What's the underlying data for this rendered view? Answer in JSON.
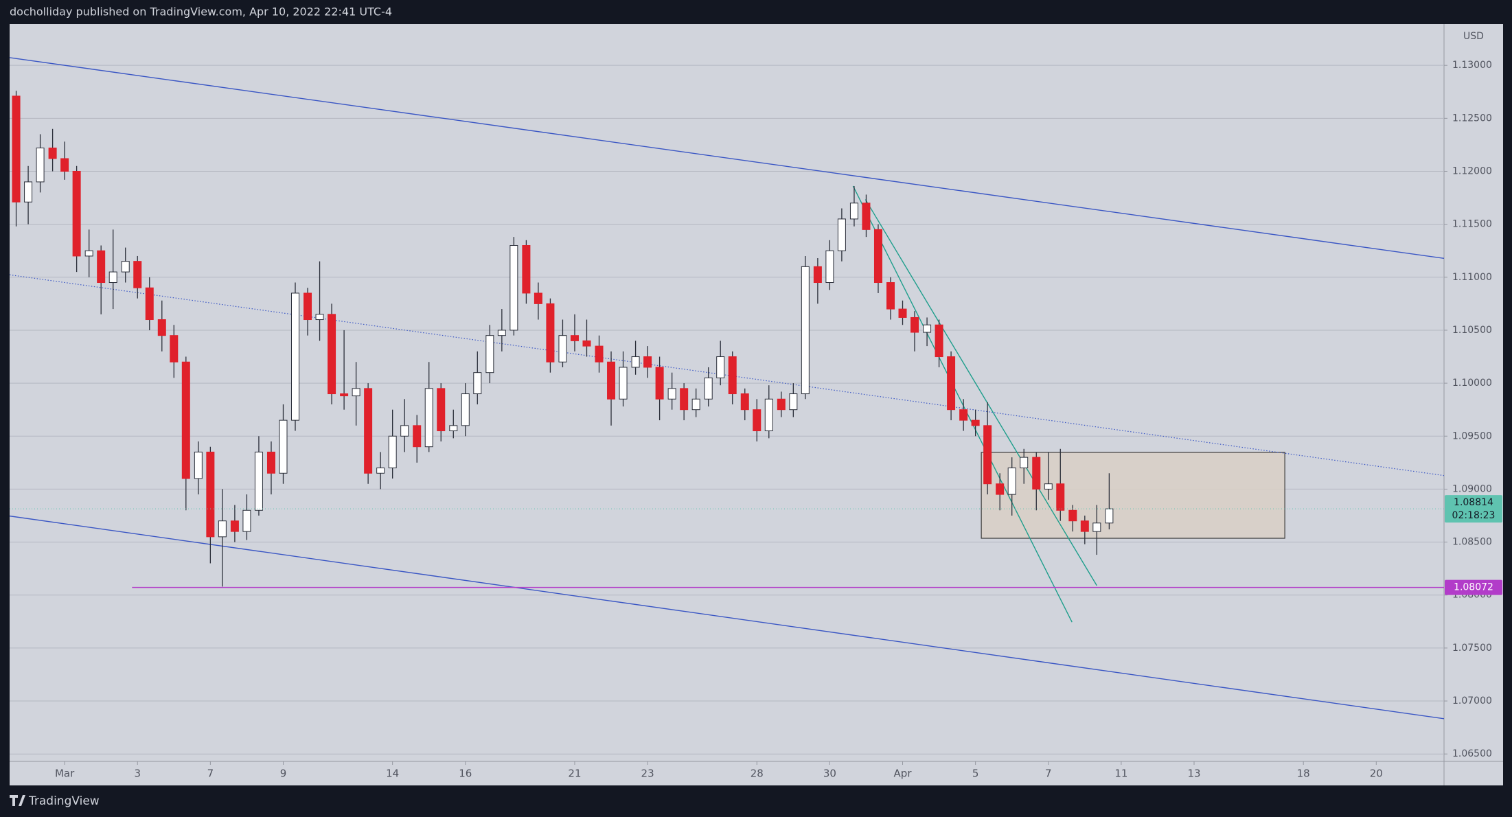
{
  "chart_data": {
    "type": "candlestick",
    "title": "docholliday published on TradingView.com, Apr 10, 2022 22:41 UTC-4",
    "brand": "TradingView",
    "currency": "USD",
    "up_color": "#ffffff",
    "down_color": "#e0212b",
    "grid": true,
    "xlim": [
      -1.51,
      37.86
    ],
    "ylim": [
      1.0643,
      1.1339
    ],
    "xticks": [
      {
        "value": 0,
        "label": "Mar"
      },
      {
        "value": 2,
        "label": "3"
      },
      {
        "value": 4,
        "label": "7"
      },
      {
        "value": 6,
        "label": "9"
      },
      {
        "value": 9,
        "label": "14"
      },
      {
        "value": 11,
        "label": "16"
      },
      {
        "value": 14,
        "label": "21"
      },
      {
        "value": 16,
        "label": "23"
      },
      {
        "value": 19,
        "label": "28"
      },
      {
        "value": 21,
        "label": "30"
      },
      {
        "value": 23,
        "label": "Apr"
      },
      {
        "value": 25,
        "label": "5"
      },
      {
        "value": 27,
        "label": "7"
      },
      {
        "value": 29,
        "label": "11"
      },
      {
        "value": 31,
        "label": "13"
      },
      {
        "value": 34,
        "label": "18"
      },
      {
        "value": 36,
        "label": "20"
      }
    ],
    "yticks": [
      {
        "value": 1.065,
        "label": "1.06500"
      },
      {
        "value": 1.07,
        "label": "1.07000"
      },
      {
        "value": 1.075,
        "label": "1.07500"
      },
      {
        "value": 1.08,
        "label": "1.08000"
      },
      {
        "value": 1.085,
        "label": "1.08500"
      },
      {
        "value": 1.09,
        "label": "1.09000"
      },
      {
        "value": 1.095,
        "label": "1.09500"
      },
      {
        "value": 1.1,
        "label": "1.10000"
      },
      {
        "value": 1.105,
        "label": "1.10500"
      },
      {
        "value": 1.11,
        "label": "1.11000"
      },
      {
        "value": 1.115,
        "label": "1.11500"
      },
      {
        "value": 1.12,
        "label": "1.12000"
      },
      {
        "value": 1.125,
        "label": "1.12500"
      },
      {
        "value": 1.13,
        "label": "1.13000"
      }
    ],
    "ohlc": [
      [
        -1.33,
        1.1271,
        1.1276,
        1.1148,
        1.1171
      ],
      [
        -1.0,
        1.1171,
        1.1205,
        1.115,
        1.119
      ],
      [
        -0.67,
        1.119,
        1.1235,
        1.118,
        1.1222
      ],
      [
        -0.33,
        1.1222,
        1.124,
        1.12,
        1.1212
      ],
      [
        0,
        1.1212,
        1.1228,
        1.1192,
        1.12
      ],
      [
        0.33,
        1.12,
        1.1205,
        1.1105,
        1.112
      ],
      [
        0.67,
        1.112,
        1.1145,
        1.11,
        1.1125
      ],
      [
        1.0,
        1.1125,
        1.113,
        1.1065,
        1.1095
      ],
      [
        1.33,
        1.1095,
        1.1145,
        1.107,
        1.1105
      ],
      [
        1.67,
        1.1105,
        1.1128,
        1.1095,
        1.1115
      ],
      [
        2.0,
        1.1115,
        1.112,
        1.108,
        1.109
      ],
      [
        2.33,
        1.109,
        1.11,
        1.105,
        1.106
      ],
      [
        2.67,
        1.106,
        1.1078,
        1.103,
        1.1045
      ],
      [
        3.0,
        1.1045,
        1.1055,
        1.1005,
        1.102
      ],
      [
        3.33,
        1.102,
        1.1025,
        1.088,
        1.091
      ],
      [
        3.67,
        1.091,
        1.0945,
        1.0895,
        1.0935
      ],
      [
        4.0,
        1.0935,
        1.094,
        1.083,
        1.0855
      ],
      [
        4.33,
        1.0855,
        1.09,
        1.0808,
        1.087
      ],
      [
        4.67,
        1.087,
        1.0885,
        1.085,
        1.086
      ],
      [
        5.0,
        1.086,
        1.0895,
        1.0852,
        1.088
      ],
      [
        5.33,
        1.088,
        1.095,
        1.0875,
        1.0935
      ],
      [
        5.67,
        1.0935,
        1.0945,
        1.0895,
        1.0915
      ],
      [
        6.0,
        1.0915,
        1.098,
        1.0905,
        1.0965
      ],
      [
        6.33,
        1.0965,
        1.1095,
        1.0955,
        1.1085
      ],
      [
        6.67,
        1.1085,
        1.109,
        1.1045,
        1.106
      ],
      [
        7.0,
        1.106,
        1.1115,
        1.104,
        1.1065
      ],
      [
        7.33,
        1.1065,
        1.1075,
        1.098,
        1.099
      ],
      [
        7.67,
        1.099,
        1.105,
        1.0975,
        1.0988
      ],
      [
        8.0,
        1.0988,
        1.102,
        1.096,
        1.0995
      ],
      [
        8.33,
        1.0995,
        1.1,
        1.0905,
        1.0915
      ],
      [
        8.67,
        1.0915,
        1.0935,
        1.09,
        1.092
      ],
      [
        9.0,
        1.092,
        1.0975,
        1.091,
        1.095
      ],
      [
        9.33,
        1.095,
        1.0985,
        1.0935,
        1.096
      ],
      [
        9.67,
        1.096,
        1.097,
        1.0925,
        1.094
      ],
      [
        10.0,
        1.094,
        1.102,
        1.0935,
        1.0995
      ],
      [
        10.33,
        1.0995,
        1.1,
        1.0945,
        1.0955
      ],
      [
        10.67,
        1.0955,
        1.0975,
        1.0948,
        1.096
      ],
      [
        11.0,
        1.096,
        1.1,
        1.095,
        1.099
      ],
      [
        11.33,
        1.099,
        1.103,
        1.098,
        1.101
      ],
      [
        11.67,
        1.101,
        1.1055,
        1.1,
        1.1045
      ],
      [
        12.0,
        1.1045,
        1.107,
        1.103,
        1.105
      ],
      [
        12.33,
        1.105,
        1.1138,
        1.1045,
        1.113
      ],
      [
        12.67,
        1.113,
        1.1135,
        1.1075,
        1.1085
      ],
      [
        13.0,
        1.1085,
        1.1095,
        1.106,
        1.1075
      ],
      [
        13.33,
        1.1075,
        1.108,
        1.101,
        1.102
      ],
      [
        13.67,
        1.102,
        1.106,
        1.1015,
        1.1045
      ],
      [
        14.0,
        1.1045,
        1.1065,
        1.103,
        1.104
      ],
      [
        14.33,
        1.104,
        1.106,
        1.1025,
        1.1035
      ],
      [
        14.67,
        1.1035,
        1.1045,
        1.101,
        1.102
      ],
      [
        15.0,
        1.102,
        1.103,
        1.096,
        1.0985
      ],
      [
        15.33,
        1.0985,
        1.103,
        1.0978,
        1.1015
      ],
      [
        15.67,
        1.1015,
        1.104,
        1.1008,
        1.1025
      ],
      [
        16.0,
        1.1025,
        1.1035,
        1.1005,
        1.1015
      ],
      [
        16.33,
        1.1015,
        1.1025,
        1.0965,
        1.0985
      ],
      [
        16.67,
        1.0985,
        1.101,
        1.0975,
        1.0995
      ],
      [
        17.0,
        1.0995,
        1.1,
        1.0965,
        1.0975
      ],
      [
        17.33,
        1.0975,
        1.0995,
        1.0968,
        1.0985
      ],
      [
        17.67,
        1.0985,
        1.1015,
        1.0978,
        1.1005
      ],
      [
        18.0,
        1.1005,
        1.104,
        1.0998,
        1.1025
      ],
      [
        18.33,
        1.1025,
        1.103,
        1.098,
        1.099
      ],
      [
        18.67,
        1.099,
        1.0995,
        1.0965,
        1.0975
      ],
      [
        19.0,
        1.0975,
        1.0985,
        1.0945,
        1.0955
      ],
      [
        19.33,
        1.0955,
        1.0998,
        1.0948,
        1.0985
      ],
      [
        19.67,
        1.0985,
        1.0992,
        1.0968,
        1.0975
      ],
      [
        20.0,
        1.0975,
        1.1,
        1.0968,
        1.099
      ],
      [
        20.33,
        1.099,
        1.112,
        1.0985,
        1.111
      ],
      [
        20.67,
        1.111,
        1.1118,
        1.1075,
        1.1095
      ],
      [
        21.0,
        1.1095,
        1.1135,
        1.1088,
        1.1125
      ],
      [
        21.33,
        1.1125,
        1.1165,
        1.1115,
        1.1155
      ],
      [
        21.67,
        1.1155,
        1.1186,
        1.1148,
        1.117
      ],
      [
        22.0,
        1.117,
        1.1178,
        1.1138,
        1.1145
      ],
      [
        22.33,
        1.1145,
        1.115,
        1.1085,
        1.1095
      ],
      [
        22.67,
        1.1095,
        1.11,
        1.106,
        1.107
      ],
      [
        23.0,
        1.107,
        1.1078,
        1.1055,
        1.1062
      ],
      [
        23.33,
        1.1062,
        1.1068,
        1.103,
        1.1048
      ],
      [
        23.67,
        1.1048,
        1.1062,
        1.1035,
        1.1055
      ],
      [
        24.0,
        1.1055,
        1.106,
        1.1015,
        1.1025
      ],
      [
        24.33,
        1.1025,
        1.103,
        1.0965,
        1.0975
      ],
      [
        24.67,
        1.0975,
        1.0985,
        1.0955,
        1.0965
      ],
      [
        25.0,
        1.0965,
        1.0975,
        1.095,
        1.096
      ],
      [
        25.33,
        1.096,
        1.0982,
        1.0895,
        1.0905
      ],
      [
        25.67,
        1.0905,
        1.0915,
        1.088,
        1.0895
      ],
      [
        26.0,
        1.0895,
        1.093,
        1.0875,
        1.092
      ],
      [
        26.33,
        1.092,
        1.0938,
        1.0905,
        1.093
      ],
      [
        26.67,
        1.093,
        1.0935,
        1.088,
        1.09
      ],
      [
        27.0,
        1.09,
        1.0935,
        1.089,
        1.0905
      ],
      [
        27.33,
        1.0905,
        1.0938,
        1.087,
        1.088
      ],
      [
        27.67,
        1.088,
        1.0885,
        1.086,
        1.087
      ],
      [
        28.0,
        1.087,
        1.0875,
        1.0848,
        1.086
      ],
      [
        28.33,
        1.086,
        1.0885,
        1.0838,
        1.0868
      ],
      [
        28.67,
        1.0868,
        1.0915,
        1.0862,
        1.08814
      ]
    ],
    "last_price": 1.08814,
    "countdown": "02:18:23",
    "last_price_color": "#5fc3b0",
    "hline": {
      "value": 1.08072,
      "x0": 1.85,
      "color": "#b23cc9"
    },
    "zone": {
      "x": [
        25.16,
        33.49
      ],
      "y": [
        1.08536,
        1.09347
      ],
      "color": "#d9cfc6"
    },
    "trendlines": [
      {
        "points": [
          [
            -1.51,
            1.13073
          ],
          [
            37.86,
            1.11178
          ]
        ],
        "color": "#3a56c4",
        "style": "solid"
      },
      {
        "points": [
          [
            -1.51,
            1.11023
          ],
          [
            37.86,
            1.09128
          ]
        ],
        "color": "#3a56c4",
        "style": "dotted"
      },
      {
        "points": [
          [
            -1.51,
            1.08746
          ],
          [
            37.86,
            1.06833
          ]
        ],
        "color": "#3a56c4",
        "style": "solid"
      },
      {
        "points": [
          [
            21.64,
            1.11861
          ],
          [
            27.65,
            1.07744
          ]
        ],
        "color": "#1e9e8c",
        "style": "solid"
      },
      {
        "points": [
          [
            21.98,
            1.11734
          ],
          [
            28.33,
            1.0809
          ]
        ],
        "color": "#1e9e8c",
        "style": "solid"
      }
    ]
  }
}
